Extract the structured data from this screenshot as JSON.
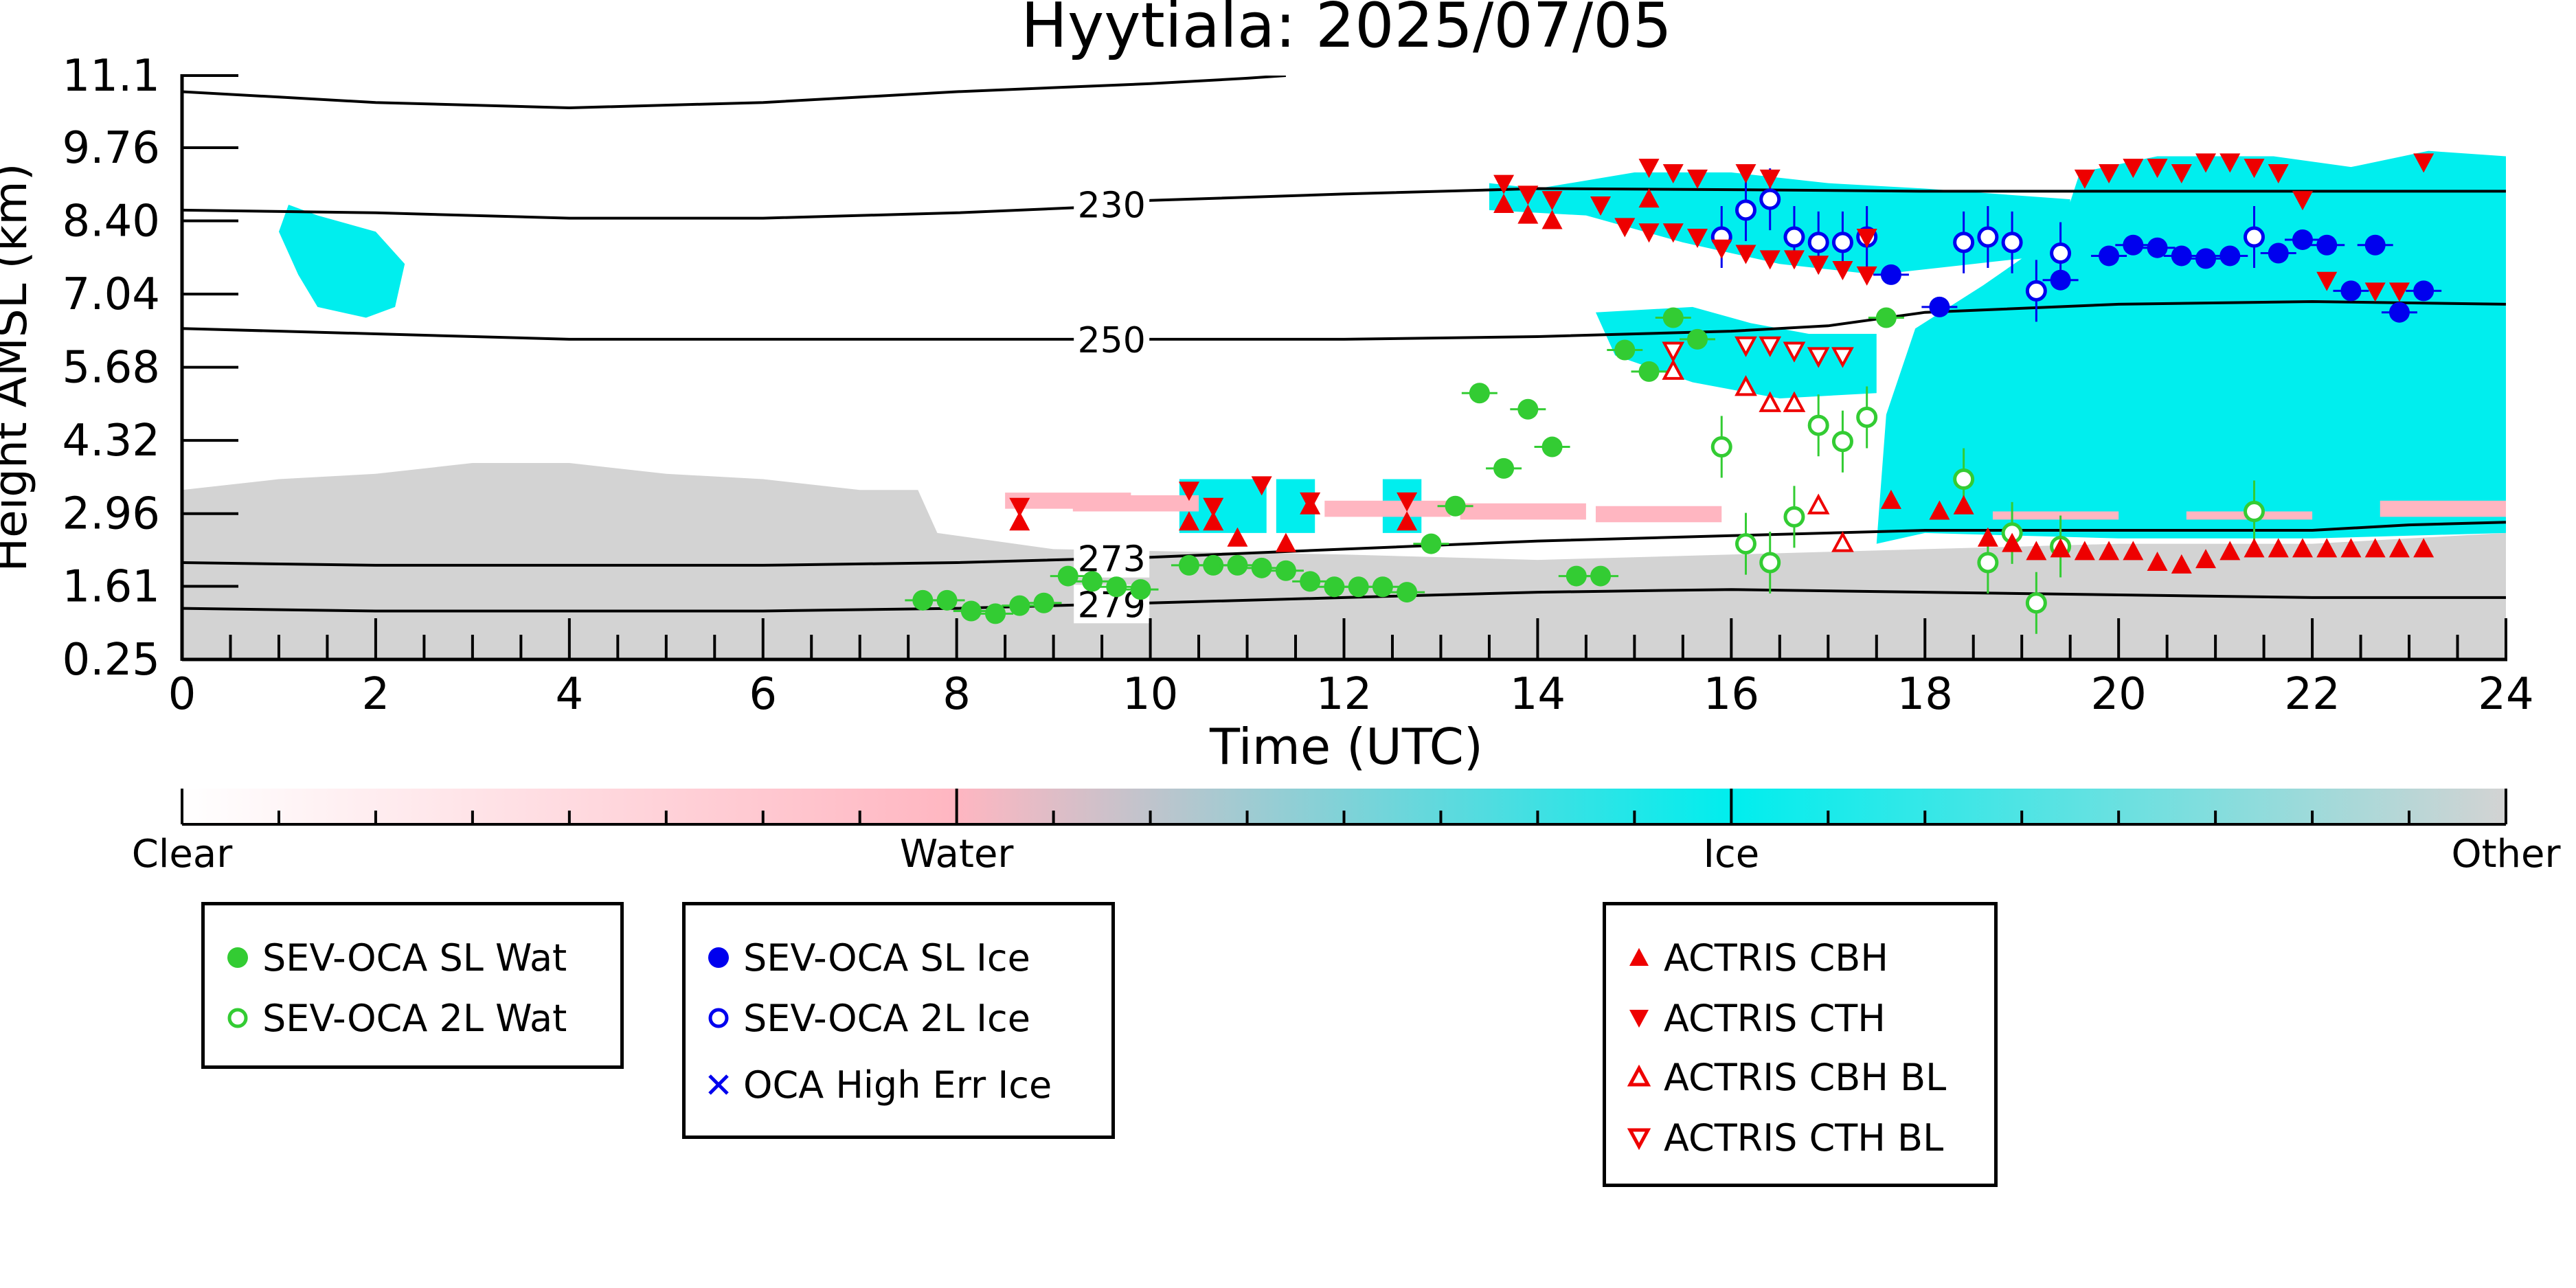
{
  "chart_data": {
    "type": "scatter",
    "title": "Hyytiala: 2025/07/05",
    "xlabel": "Time (UTC)",
    "ylabel": "Height AMSL (km)",
    "xlim": [
      0,
      24
    ],
    "ylim": [
      0.25,
      11.1
    ],
    "x_ticks": [
      "0",
      "2",
      "4",
      "6",
      "8",
      "10",
      "12",
      "14",
      "16",
      "18",
      "20",
      "22",
      "24"
    ],
    "y_ticks": [
      "0.25",
      "1.61",
      "2.96",
      "4.32",
      "5.68",
      "7.04",
      "8.40",
      "9.76",
      "11.1"
    ],
    "y_tick_values": [
      0.25,
      1.61,
      2.96,
      4.32,
      5.68,
      7.04,
      8.4,
      9.76,
      11.1
    ],
    "colorbar": {
      "labels": [
        "Clear",
        "Water",
        "Ice",
        "Other"
      ],
      "colors": [
        "#ffffff",
        "#ffb6c1",
        "#00eeee",
        "#d3d3d3"
      ]
    },
    "isotherms": [
      {
        "label": "230",
        "label_x": 9.6,
        "points": [
          [
            0,
            8.6
          ],
          [
            2,
            8.55
          ],
          [
            4,
            8.45
          ],
          [
            6,
            8.45
          ],
          [
            8,
            8.55
          ],
          [
            9.3,
            8.65
          ],
          [
            10,
            8.78
          ],
          [
            12,
            8.9
          ],
          [
            14,
            9.0
          ],
          [
            16,
            8.98
          ],
          [
            18,
            8.95
          ],
          [
            20,
            8.95
          ],
          [
            22,
            8.95
          ],
          [
            24,
            8.95
          ]
        ]
      },
      {
        "label": "250",
        "label_x": 9.6,
        "points": [
          [
            0,
            6.4
          ],
          [
            2,
            6.3
          ],
          [
            4,
            6.2
          ],
          [
            6,
            6.2
          ],
          [
            8,
            6.2
          ],
          [
            10,
            6.2
          ],
          [
            12,
            6.2
          ],
          [
            14,
            6.25
          ],
          [
            16,
            6.35
          ],
          [
            17,
            6.45
          ],
          [
            18,
            6.7
          ],
          [
            20,
            6.85
          ],
          [
            22,
            6.9
          ],
          [
            24,
            6.85
          ]
        ]
      },
      {
        "label": "273",
        "label_x": 9.6,
        "points": [
          [
            0,
            2.05
          ],
          [
            2,
            2.0
          ],
          [
            4,
            2.0
          ],
          [
            6,
            2.0
          ],
          [
            8,
            2.05
          ],
          [
            10,
            2.15
          ],
          [
            12,
            2.3
          ],
          [
            14,
            2.45
          ],
          [
            16,
            2.55
          ],
          [
            18,
            2.65
          ],
          [
            20,
            2.65
          ],
          [
            22,
            2.65
          ],
          [
            23,
            2.75
          ],
          [
            24,
            2.8
          ]
        ]
      },
      {
        "label": "279",
        "label_x": 9.6,
        "points": [
          [
            0,
            1.2
          ],
          [
            2,
            1.15
          ],
          [
            4,
            1.15
          ],
          [
            6,
            1.15
          ],
          [
            8,
            1.2
          ],
          [
            10,
            1.3
          ],
          [
            12,
            1.4
          ],
          [
            14,
            1.5
          ],
          [
            16,
            1.55
          ],
          [
            18,
            1.5
          ],
          [
            20,
            1.45
          ],
          [
            22,
            1.4
          ],
          [
            24,
            1.4
          ]
        ]
      },
      {
        "label": "",
        "label_x": null,
        "points": [
          [
            0,
            10.8
          ],
          [
            1,
            10.7
          ],
          [
            2,
            10.6
          ],
          [
            4,
            10.5
          ],
          [
            6,
            10.6
          ],
          [
            8,
            10.8
          ],
          [
            10,
            10.95
          ],
          [
            11,
            11.05
          ],
          [
            11.4,
            11.1
          ]
        ]
      }
    ],
    "series": [
      {
        "name": "SEV-OCA SL Wat",
        "marker": "circle-filled",
        "color": "#33cc33",
        "points": [
          [
            7.65,
            1.35
          ],
          [
            7.9,
            1.35
          ],
          [
            8.15,
            1.15
          ],
          [
            8.4,
            1.1
          ],
          [
            8.65,
            1.25
          ],
          [
            8.9,
            1.3
          ],
          [
            9.15,
            1.8
          ],
          [
            9.4,
            1.7
          ],
          [
            9.65,
            1.6
          ],
          [
            9.9,
            1.55
          ],
          [
            10.4,
            2.0
          ],
          [
            10.65,
            2.0
          ],
          [
            10.9,
            2.0
          ],
          [
            11.15,
            1.95
          ],
          [
            11.4,
            1.9
          ],
          [
            11.65,
            1.7
          ],
          [
            11.9,
            1.6
          ],
          [
            12.15,
            1.6
          ],
          [
            12.4,
            1.6
          ],
          [
            12.65,
            1.5
          ],
          [
            12.9,
            2.4
          ],
          [
            13.15,
            3.1
          ],
          [
            13.4,
            5.2
          ],
          [
            13.65,
            3.8
          ],
          [
            13.9,
            4.9
          ],
          [
            14.15,
            4.2
          ],
          [
            14.4,
            1.8
          ],
          [
            14.65,
            1.8
          ],
          [
            14.9,
            6.0
          ],
          [
            15.15,
            5.6
          ],
          [
            15.4,
            6.6
          ],
          [
            15.65,
            6.2
          ],
          [
            17.6,
            6.6
          ]
        ]
      },
      {
        "name": "SEV-OCA 2L Wat",
        "marker": "circle-open",
        "color": "#33cc33",
        "points": [
          [
            15.9,
            4.2
          ],
          [
            16.15,
            2.4
          ],
          [
            16.4,
            2.05
          ],
          [
            16.65,
            2.9
          ],
          [
            16.9,
            4.6
          ],
          [
            17.15,
            4.3
          ],
          [
            17.4,
            4.75
          ],
          [
            18.4,
            3.6
          ],
          [
            18.65,
            2.05
          ],
          [
            18.9,
            2.6
          ],
          [
            19.15,
            1.3
          ],
          [
            19.4,
            2.35
          ],
          [
            21.4,
            3.0
          ]
        ]
      },
      {
        "name": "SEV-OCA SL Ice",
        "marker": "circle-filled",
        "color": "#0000ee",
        "points": [
          [
            17.65,
            7.4
          ],
          [
            18.15,
            6.8
          ],
          [
            19.4,
            7.3
          ],
          [
            19.9,
            7.75
          ],
          [
            20.15,
            7.95
          ],
          [
            20.4,
            7.9
          ],
          [
            20.65,
            7.75
          ],
          [
            20.9,
            7.7
          ],
          [
            21.15,
            7.75
          ],
          [
            21.65,
            7.8
          ],
          [
            21.9,
            8.05
          ],
          [
            22.15,
            7.95
          ],
          [
            22.4,
            7.1
          ],
          [
            22.65,
            7.95
          ],
          [
            22.9,
            6.7
          ],
          [
            23.15,
            7.1
          ]
        ]
      },
      {
        "name": "SEV-OCA 2L Ice",
        "marker": "circle-open",
        "color": "#0000ee",
        "points": [
          [
            15.9,
            8.1
          ],
          [
            16.15,
            8.6
          ],
          [
            16.4,
            8.8
          ],
          [
            16.65,
            8.1
          ],
          [
            16.9,
            8.0
          ],
          [
            17.15,
            8.0
          ],
          [
            17.4,
            8.1
          ],
          [
            18.4,
            8.0
          ],
          [
            18.65,
            8.1
          ],
          [
            18.9,
            8.0
          ],
          [
            19.15,
            7.1
          ],
          [
            19.4,
            7.8
          ],
          [
            21.4,
            8.1
          ]
        ]
      },
      {
        "name": "OCA High Err Ice",
        "marker": "x",
        "color": "#0000ee",
        "points": []
      },
      {
        "name": "ACTRIS CBH",
        "marker": "triangle-up-filled",
        "color": "#ee0000",
        "points": [
          [
            8.65,
            2.8
          ],
          [
            10.4,
            2.8
          ],
          [
            10.65,
            2.8
          ],
          [
            10.9,
            2.5
          ],
          [
            11.4,
            2.4
          ],
          [
            11.65,
            3.1
          ],
          [
            12.65,
            2.8
          ],
          [
            13.65,
            8.7
          ],
          [
            13.9,
            8.5
          ],
          [
            14.15,
            8.4
          ],
          [
            15.15,
            8.8
          ],
          [
            17.65,
            3.2
          ],
          [
            18.15,
            3.0
          ],
          [
            18.4,
            3.1
          ],
          [
            18.65,
            2.5
          ],
          [
            18.9,
            2.4
          ],
          [
            19.15,
            2.25
          ],
          [
            19.4,
            2.3
          ],
          [
            19.65,
            2.25
          ],
          [
            19.9,
            2.25
          ],
          [
            20.15,
            2.25
          ],
          [
            20.4,
            2.05
          ],
          [
            20.65,
            2.0
          ],
          [
            20.9,
            2.1
          ],
          [
            21.15,
            2.25
          ],
          [
            21.4,
            2.3
          ],
          [
            21.65,
            2.3
          ],
          [
            21.9,
            2.3
          ],
          [
            22.15,
            2.3
          ],
          [
            22.4,
            2.3
          ],
          [
            22.65,
            2.3
          ],
          [
            22.9,
            2.3
          ],
          [
            23.15,
            2.3
          ]
        ]
      },
      {
        "name": "ACTRIS CTH",
        "marker": "triangle-down-filled",
        "color": "#ee0000",
        "points": [
          [
            8.65,
            3.1
          ],
          [
            10.4,
            3.4
          ],
          [
            10.65,
            3.1
          ],
          [
            11.15,
            3.5
          ],
          [
            11.65,
            3.2
          ],
          [
            12.65,
            3.2
          ],
          [
            13.65,
            9.1
          ],
          [
            13.9,
            8.9
          ],
          [
            14.15,
            8.8
          ],
          [
            14.65,
            8.7
          ],
          [
            14.9,
            8.3
          ],
          [
            15.15,
            8.2
          ],
          [
            15.4,
            8.2
          ],
          [
            15.65,
            8.1
          ],
          [
            15.9,
            7.9
          ],
          [
            16.15,
            7.8
          ],
          [
            16.4,
            7.7
          ],
          [
            16.65,
            7.7
          ],
          [
            16.9,
            7.6
          ],
          [
            17.15,
            7.5
          ],
          [
            17.4,
            7.4
          ],
          [
            15.15,
            9.4
          ],
          [
            15.4,
            9.3
          ],
          [
            15.65,
            9.2
          ],
          [
            16.15,
            9.3
          ],
          [
            16.4,
            9.2
          ],
          [
            17.4,
            8.1
          ],
          [
            19.65,
            9.2
          ],
          [
            19.9,
            9.3
          ],
          [
            20.15,
            9.4
          ],
          [
            20.4,
            9.4
          ],
          [
            20.65,
            9.3
          ],
          [
            20.9,
            9.5
          ],
          [
            21.15,
            9.5
          ],
          [
            21.4,
            9.4
          ],
          [
            21.65,
            9.3
          ],
          [
            21.9,
            8.8
          ],
          [
            22.15,
            7.3
          ],
          [
            22.65,
            7.1
          ],
          [
            22.9,
            7.1
          ],
          [
            23.15,
            9.5
          ]
        ]
      },
      {
        "name": "ACTRIS CBH BL",
        "marker": "triangle-up-open",
        "color": "#ee0000",
        "points": [
          [
            15.4,
            5.6
          ],
          [
            16.15,
            5.3
          ],
          [
            16.4,
            5.0
          ],
          [
            16.65,
            5.0
          ],
          [
            16.9,
            3.1
          ],
          [
            17.15,
            2.4
          ]
        ]
      },
      {
        "name": "ACTRIS CTH BL",
        "marker": "triangle-down-open",
        "color": "#ee0000",
        "points": [
          [
            15.4,
            6.0
          ],
          [
            16.15,
            6.1
          ],
          [
            16.4,
            6.1
          ],
          [
            16.65,
            6.0
          ],
          [
            16.9,
            5.9
          ],
          [
            17.15,
            5.9
          ]
        ]
      }
    ],
    "legend_groups": [
      [
        "SEV-OCA SL Wat",
        "SEV-OCA 2L Wat"
      ],
      [
        "SEV-OCA SL Ice",
        "SEV-OCA 2L Ice",
        "OCA High Err Ice"
      ],
      [
        "ACTRIS CBH",
        "ACTRIS CTH",
        "ACTRIS CBH BL",
        "ACTRIS CTH BL"
      ]
    ],
    "grid": false
  }
}
